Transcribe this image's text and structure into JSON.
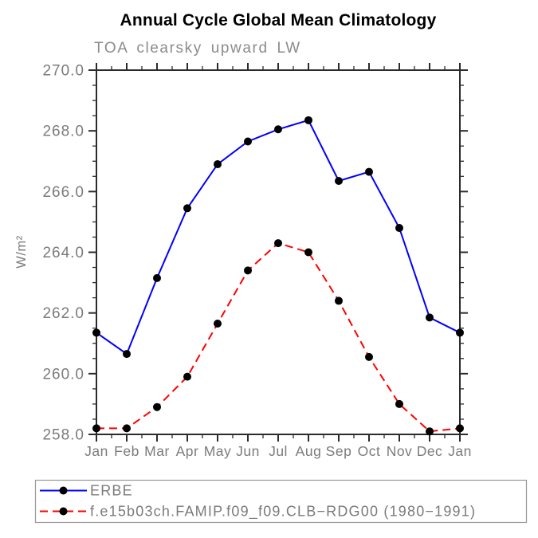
{
  "page": {
    "background": "#ffffff"
  },
  "chart_data": {
    "type": "line",
    "title": "Annual Cycle Global Mean Climatology",
    "subtitle": "TOA clearsky upward LW",
    "ylabel": "W/m²",
    "xlabel": "",
    "categories": [
      "Jan",
      "Feb",
      "Mar",
      "Apr",
      "May",
      "Jun",
      "Jul",
      "Aug",
      "Sep",
      "Oct",
      "Nov",
      "Dec",
      "Jan"
    ],
    "ylim": [
      258.0,
      270.0
    ],
    "ytick_step": 2.0,
    "yminor_step": 0.5,
    "ytick_decimals": 1,
    "grid": false,
    "legend_position": "bottom",
    "axis_color": "#2b2b2b",
    "label_color": "#7b7b7b",
    "legend_text_color": "#7b7b7b",
    "legend_border_color": "#999999",
    "series": [
      {
        "name": "ERBE",
        "line_color": "#0000ff",
        "line_style": "solid",
        "marker": "circle",
        "marker_color": "#000000",
        "values": [
          261.35,
          260.65,
          263.15,
          265.45,
          266.9,
          267.65,
          268.05,
          268.35,
          266.35,
          266.65,
          264.8,
          261.85,
          261.35
        ]
      },
      {
        "name": "f.e15b03ch.FAMIP.f09_f09.CLB−RDG00 (1980−1991)",
        "line_color": "#ff0000",
        "line_style": "dashed",
        "marker": "circle",
        "marker_color": "#000000",
        "values": [
          258.2,
          258.2,
          258.9,
          259.9,
          261.65,
          263.4,
          264.3,
          264.0,
          262.4,
          260.55,
          259.0,
          258.1,
          258.2
        ]
      }
    ]
  }
}
